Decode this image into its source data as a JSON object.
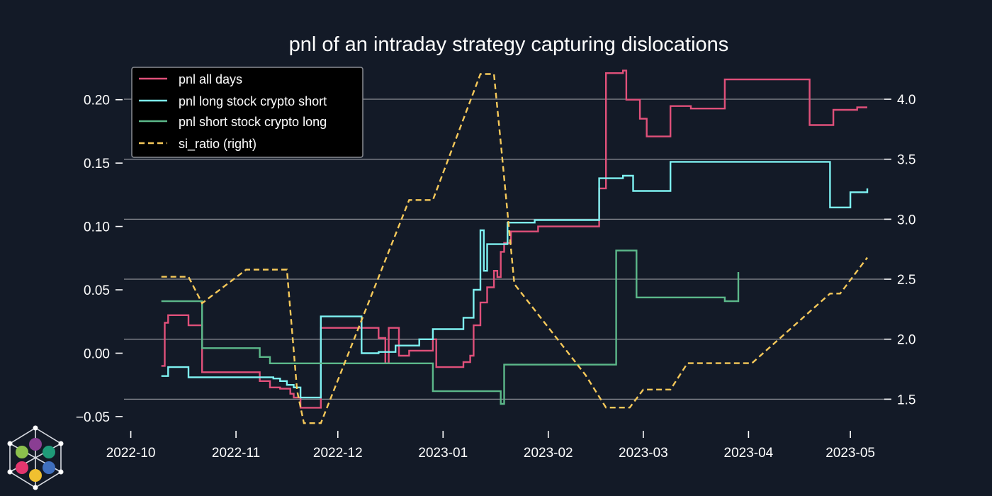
{
  "chart_data": {
    "type": "line",
    "title": "pnl of an intraday strategy capturing dislocations",
    "x_ticks": [
      "2022-10",
      "2022-11",
      "2022-12",
      "2023-01",
      "2023-02",
      "2023-03",
      "2023-04",
      "2023-05"
    ],
    "x_tick_dates": [
      "2022-10-01",
      "2022-11-01",
      "2022-12-01",
      "2023-01-01",
      "2023-02-01",
      "2023-03-01",
      "2023-04-01",
      "2023-05-01"
    ],
    "xlim": [
      "2022-09-29",
      "2023-05-11"
    ],
    "y_left": {
      "ticks": [
        "0.20",
        "0.15",
        "0.10",
        "0.05",
        "0.00",
        "−0.05"
      ],
      "tick_values": [
        0.2,
        0.15,
        0.1,
        0.05,
        0.0,
        -0.05
      ],
      "ylim": [
        -0.059,
        0.225
      ]
    },
    "y_right": {
      "ticks": [
        "4.0",
        "3.5",
        "3.0",
        "2.5",
        "2.0",
        "1.5"
      ],
      "tick_values": [
        4.0,
        3.5,
        3.0,
        2.5,
        2.0,
        1.5
      ],
      "ylim": [
        1.26,
        4.26
      ]
    },
    "legend_position": "top-left",
    "series": [
      {
        "name": "pnl all days",
        "axis": "left",
        "style": "step",
        "color": "#e0507a",
        "x": [
          "2022-10-10",
          "2022-10-11",
          "2022-10-12",
          "2022-10-18",
          "2022-10-22",
          "2022-11-08",
          "2022-11-11",
          "2022-11-14",
          "2022-11-17",
          "2022-11-18",
          "2022-11-20",
          "2022-11-26",
          "2022-12-13",
          "2022-12-15",
          "2022-12-16",
          "2022-12-19",
          "2022-12-22",
          "2022-12-29",
          "2022-12-30",
          "2023-01-07",
          "2023-01-09",
          "2023-01-10",
          "2023-01-12",
          "2023-01-14",
          "2023-01-16",
          "2023-01-17",
          "2023-01-18",
          "2023-01-19",
          "2023-01-21",
          "2023-01-29",
          "2023-02-16",
          "2023-02-18",
          "2023-02-23",
          "2023-02-24",
          "2023-02-28",
          "2023-03-02",
          "2023-03-09",
          "2023-03-15",
          "2023-03-25",
          "2023-03-29",
          "2023-04-19",
          "2023-04-26",
          "2023-05-03",
          "2023-05-06"
        ],
        "values": [
          -0.01,
          0.024,
          0.03,
          0.022,
          -0.015,
          -0.022,
          -0.027,
          -0.028,
          -0.032,
          -0.035,
          -0.043,
          0.02,
          0.012,
          -0.008,
          0.02,
          -0.002,
          0.002,
          0.011,
          -0.011,
          -0.007,
          -0.002,
          0.022,
          0.04,
          0.052,
          0.065,
          0.06,
          0.08,
          0.087,
          0.096,
          0.1,
          0.13,
          0.221,
          0.223,
          0.2,
          0.185,
          0.171,
          0.195,
          0.193,
          0.216,
          0.216,
          0.18,
          0.192,
          0.194,
          0.194
        ]
      },
      {
        "name": "pnl long stock crypto short",
        "axis": "left",
        "style": "step",
        "color": "#7ef2f2",
        "x": [
          "2022-10-10",
          "2022-10-12",
          "2022-10-18",
          "2022-11-12",
          "2022-11-14",
          "2022-11-16",
          "2022-11-18",
          "2022-11-20",
          "2022-11-26",
          "2022-12-08",
          "2022-12-13",
          "2022-12-18",
          "2022-12-25",
          "2022-12-29",
          "2023-01-07",
          "2023-01-10",
          "2023-01-12",
          "2023-01-13",
          "2023-01-14",
          "2023-01-20",
          "2023-01-28",
          "2023-02-16",
          "2023-02-23",
          "2023-02-26",
          "2023-03-09",
          "2023-03-29",
          "2023-04-25",
          "2023-05-01",
          "2023-05-06"
        ],
        "values": [
          -0.018,
          -0.011,
          -0.019,
          -0.02,
          -0.022,
          -0.025,
          -0.027,
          -0.035,
          0.029,
          0.0,
          0.001,
          0.006,
          0.011,
          0.019,
          0.028,
          0.05,
          0.097,
          0.065,
          0.086,
          0.103,
          0.105,
          0.138,
          0.14,
          0.128,
          0.151,
          0.151,
          0.115,
          0.127,
          0.13
        ]
      },
      {
        "name": "pnl short stock crypto long",
        "axis": "left",
        "style": "step",
        "color": "#5cb88a",
        "x": [
          "2022-10-10",
          "2022-10-22",
          "2022-11-08",
          "2022-11-11",
          "2022-11-26",
          "2022-12-29",
          "2023-01-18",
          "2023-01-19",
          "2023-02-21",
          "2023-02-27",
          "2023-03-25",
          "2023-03-29"
        ],
        "values": [
          0.041,
          0.004,
          -0.003,
          -0.008,
          -0.008,
          -0.03,
          -0.04,
          -0.009,
          0.081,
          0.044,
          0.041,
          0.064
        ]
      },
      {
        "name": "si_ratio (right)",
        "axis": "right",
        "style": "line",
        "dashed": true,
        "color": "#f6c95a",
        "x": [
          "2022-10-10",
          "2022-10-18",
          "2022-10-22",
          "2022-11-04",
          "2022-11-16",
          "2022-11-19",
          "2022-11-21",
          "2022-11-26",
          "2022-12-22",
          "2022-12-29",
          "2023-01-12",
          "2023-01-16",
          "2023-01-18",
          "2023-01-22",
          "2023-02-12",
          "2023-02-18",
          "2023-02-25",
          "2023-03-01",
          "2023-03-09",
          "2023-03-14",
          "2023-03-24",
          "2023-04-02",
          "2023-04-25",
          "2023-04-28",
          "2023-05-06"
        ],
        "values": [
          2.52,
          2.52,
          2.3,
          2.58,
          2.58,
          1.57,
          1.3,
          1.3,
          3.16,
          3.16,
          4.21,
          4.21,
          3.64,
          2.46,
          1.7,
          1.43,
          1.43,
          1.58,
          1.58,
          1.8,
          1.8,
          1.8,
          2.38,
          2.38,
          2.68
        ]
      }
    ]
  },
  "logo": {
    "colors": [
      "#8a3e93",
      "#1f9b79",
      "#3f6fbd",
      "#f0c030",
      "#e4366e",
      "#8cc04d"
    ]
  }
}
